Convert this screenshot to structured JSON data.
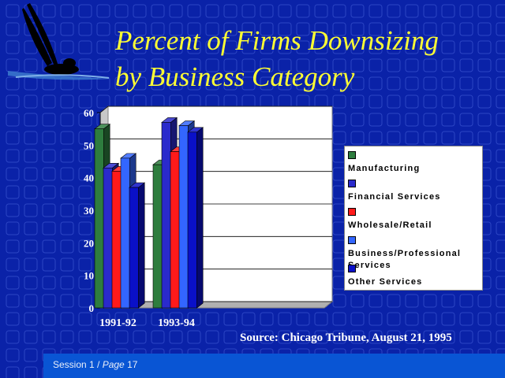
{
  "slide": {
    "title_line1": "Percent of Firms Downsizing",
    "title_line2": "by Business Category",
    "source": "Source: Chicago Tribune, August 21, 1995",
    "footer_session": "Session 1 / ",
    "footer_page": "Page",
    "footer_number": " 17",
    "colors": {
      "background": "#0a22a8",
      "title": "#ffff33",
      "footer_bar": "#0955d4"
    }
  },
  "chart_data": {
    "type": "bar",
    "style": "3d-clustered",
    "categories": [
      "1991-92",
      "1993-94"
    ],
    "series": [
      {
        "name": "Manufacturing",
        "color": "#2e7d3e",
        "values": [
          55,
          44
        ]
      },
      {
        "name": "Financial Services",
        "color": "#2a2acc",
        "values": [
          43,
          57
        ]
      },
      {
        "name": "Wholesale/Retail",
        "color": "#ff1a1a",
        "values": [
          42,
          48
        ]
      },
      {
        "name": "Business/Professional Services",
        "color": "#3366ff",
        "values": [
          46,
          56
        ]
      },
      {
        "name": "Other Services",
        "color": "#0a10c8",
        "values": [
          37,
          54
        ]
      }
    ],
    "yticks": [
      "0",
      "10",
      "20",
      "30",
      "40",
      "50",
      "60"
    ],
    "ylim": [
      0,
      60
    ],
    "grid": true,
    "legend_position": "right"
  }
}
